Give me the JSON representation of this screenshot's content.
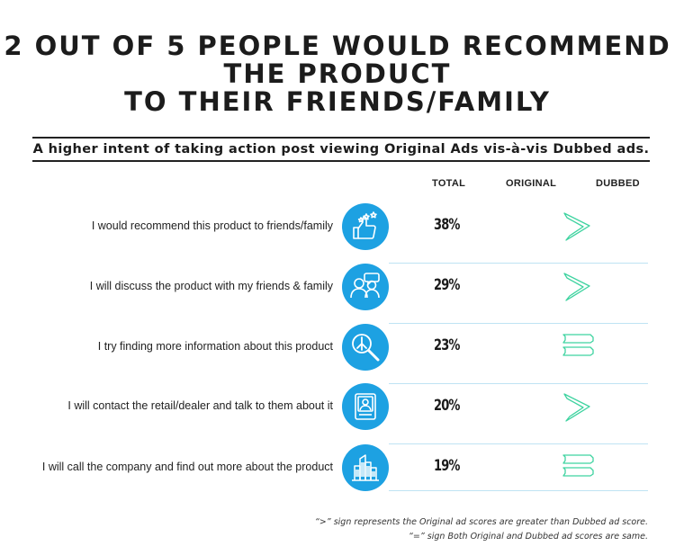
{
  "title": {
    "line1": "2 OUT OF 5 PEOPLE WOULD RECOMMEND",
    "line2": "THE PRODUCT",
    "line3": "TO THEIR FRIENDS/FAMILY"
  },
  "subtitle": "A higher intent of taking action post viewing Original Ads vis-à-vis Dubbed ads.",
  "columns": {
    "total": "TOTAL",
    "original": "ORIGINAL",
    "dubbed": "DUBBED"
  },
  "rows": [
    {
      "label": "I would recommend this product to friends/family",
      "total": "38%",
      "icon": "thumbs-up-stars-icon",
      "sign": "greater"
    },
    {
      "label": "I will discuss the product with my friends & family",
      "total": "29%",
      "icon": "people-discussion-icon",
      "sign": "greater"
    },
    {
      "label": "I try finding more information about this product",
      "total": "23%",
      "icon": "magnifier-search-icon",
      "sign": "equal"
    },
    {
      "label": "I will contact the retail/dealer and talk to them about it",
      "total": "20%",
      "icon": "contact-card-icon",
      "sign": "greater"
    },
    {
      "label": "I will call the company and find out more about the product",
      "total": "19%",
      "icon": "buildings-icon",
      "sign": "equal"
    }
  ],
  "footnotes": {
    "greater": "“>” sign represents the Original ad scores are greater than Dubbed ad score.",
    "equal": "“=” sign Both Original and Dubbed ad scores are same."
  },
  "colors": {
    "accent": "#1da1e2",
    "divider": "#bfe3f3",
    "sign_stroke": "#3fd3a0"
  }
}
